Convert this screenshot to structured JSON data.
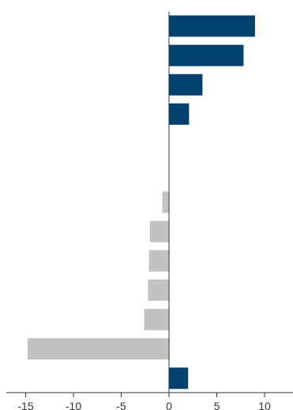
{
  "chart_data": {
    "type": "bar",
    "orientation": "horizontal",
    "categories": [
      "",
      "",
      "",
      "",
      "",
      "",
      "",
      "",
      "",
      "",
      "",
      "",
      ""
    ],
    "values": [
      9.0,
      7.8,
      3.5,
      2.1,
      0,
      0,
      -0.7,
      -2.0,
      -2.1,
      -2.2,
      -2.6,
      -14.8,
      2.0
    ],
    "xlim": [
      -17,
      13
    ],
    "xticks": [
      -15,
      -10,
      -5,
      0,
      5,
      10
    ],
    "xtick_labels": [
      "-15",
      "-10",
      "-5",
      "0",
      "5",
      "10"
    ],
    "title": "",
    "xlabel": "",
    "ylabel": "",
    "grid": false,
    "legend": "none",
    "colors": {
      "positive": "#004170",
      "negative": "#c2c2c2",
      "axis": "#333333"
    }
  }
}
